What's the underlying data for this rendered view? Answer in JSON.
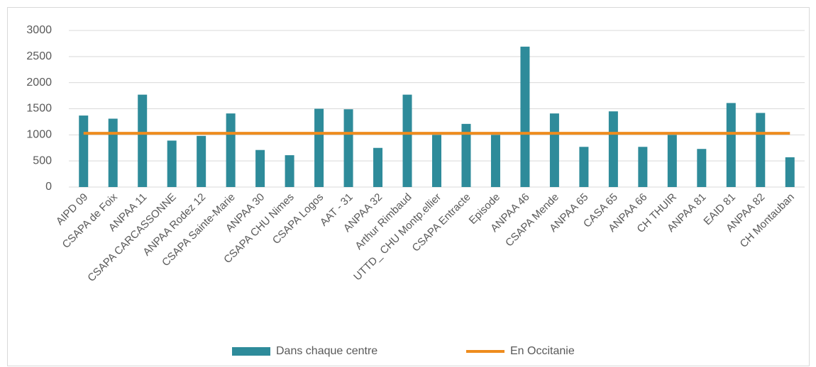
{
  "chart_data": {
    "type": "bar",
    "categories": [
      "AIPD 09",
      "CSAPA de Foix",
      "ANPAA 11",
      "CSAPA CARCASSONNE",
      "ANPAA Rodez 12",
      "CSAPA Sainte-Marie",
      "ANPAA 30",
      "CSAPA CHU Nimes",
      "CSAPA Logos",
      "AAT - 31",
      "ANPAA 32",
      "Arthur Rimbaud",
      "UTTD_ CHU Montp.ellier",
      "CSAPA Entracte",
      "Episode",
      "ANPAA 46",
      "CSAPA Mende",
      "ANPAA 65",
      "CASA 65",
      "ANPAA 66",
      "CH THUIR",
      "ANPAA 81",
      "EAID 81",
      "ANPAA 82",
      "CH Montauban"
    ],
    "series": [
      {
        "name": "Dans chaque centre",
        "type": "bar",
        "color": "#2e8b9a",
        "values": [
          1370,
          1310,
          1770,
          890,
          980,
          1410,
          710,
          610,
          1500,
          1490,
          750,
          1770,
          1000,
          1210,
          1000,
          2690,
          1410,
          770,
          1450,
          770,
          1000,
          730,
          1610,
          1420,
          570
        ]
      },
      {
        "name": "En Occitanie",
        "type": "line",
        "color": "#ee8c1e",
        "values": [
          1030,
          1030,
          1030,
          1030,
          1030,
          1030,
          1030,
          1030,
          1030,
          1030,
          1030,
          1030,
          1030,
          1030,
          1030,
          1030,
          1030,
          1030,
          1030,
          1030,
          1030,
          1030,
          1030,
          1030,
          1030
        ]
      }
    ],
    "ylim": [
      0,
      3000
    ],
    "yticks": [
      0,
      500,
      1000,
      1500,
      2000,
      2500,
      3000
    ],
    "grid": true,
    "legend": "bottom"
  }
}
